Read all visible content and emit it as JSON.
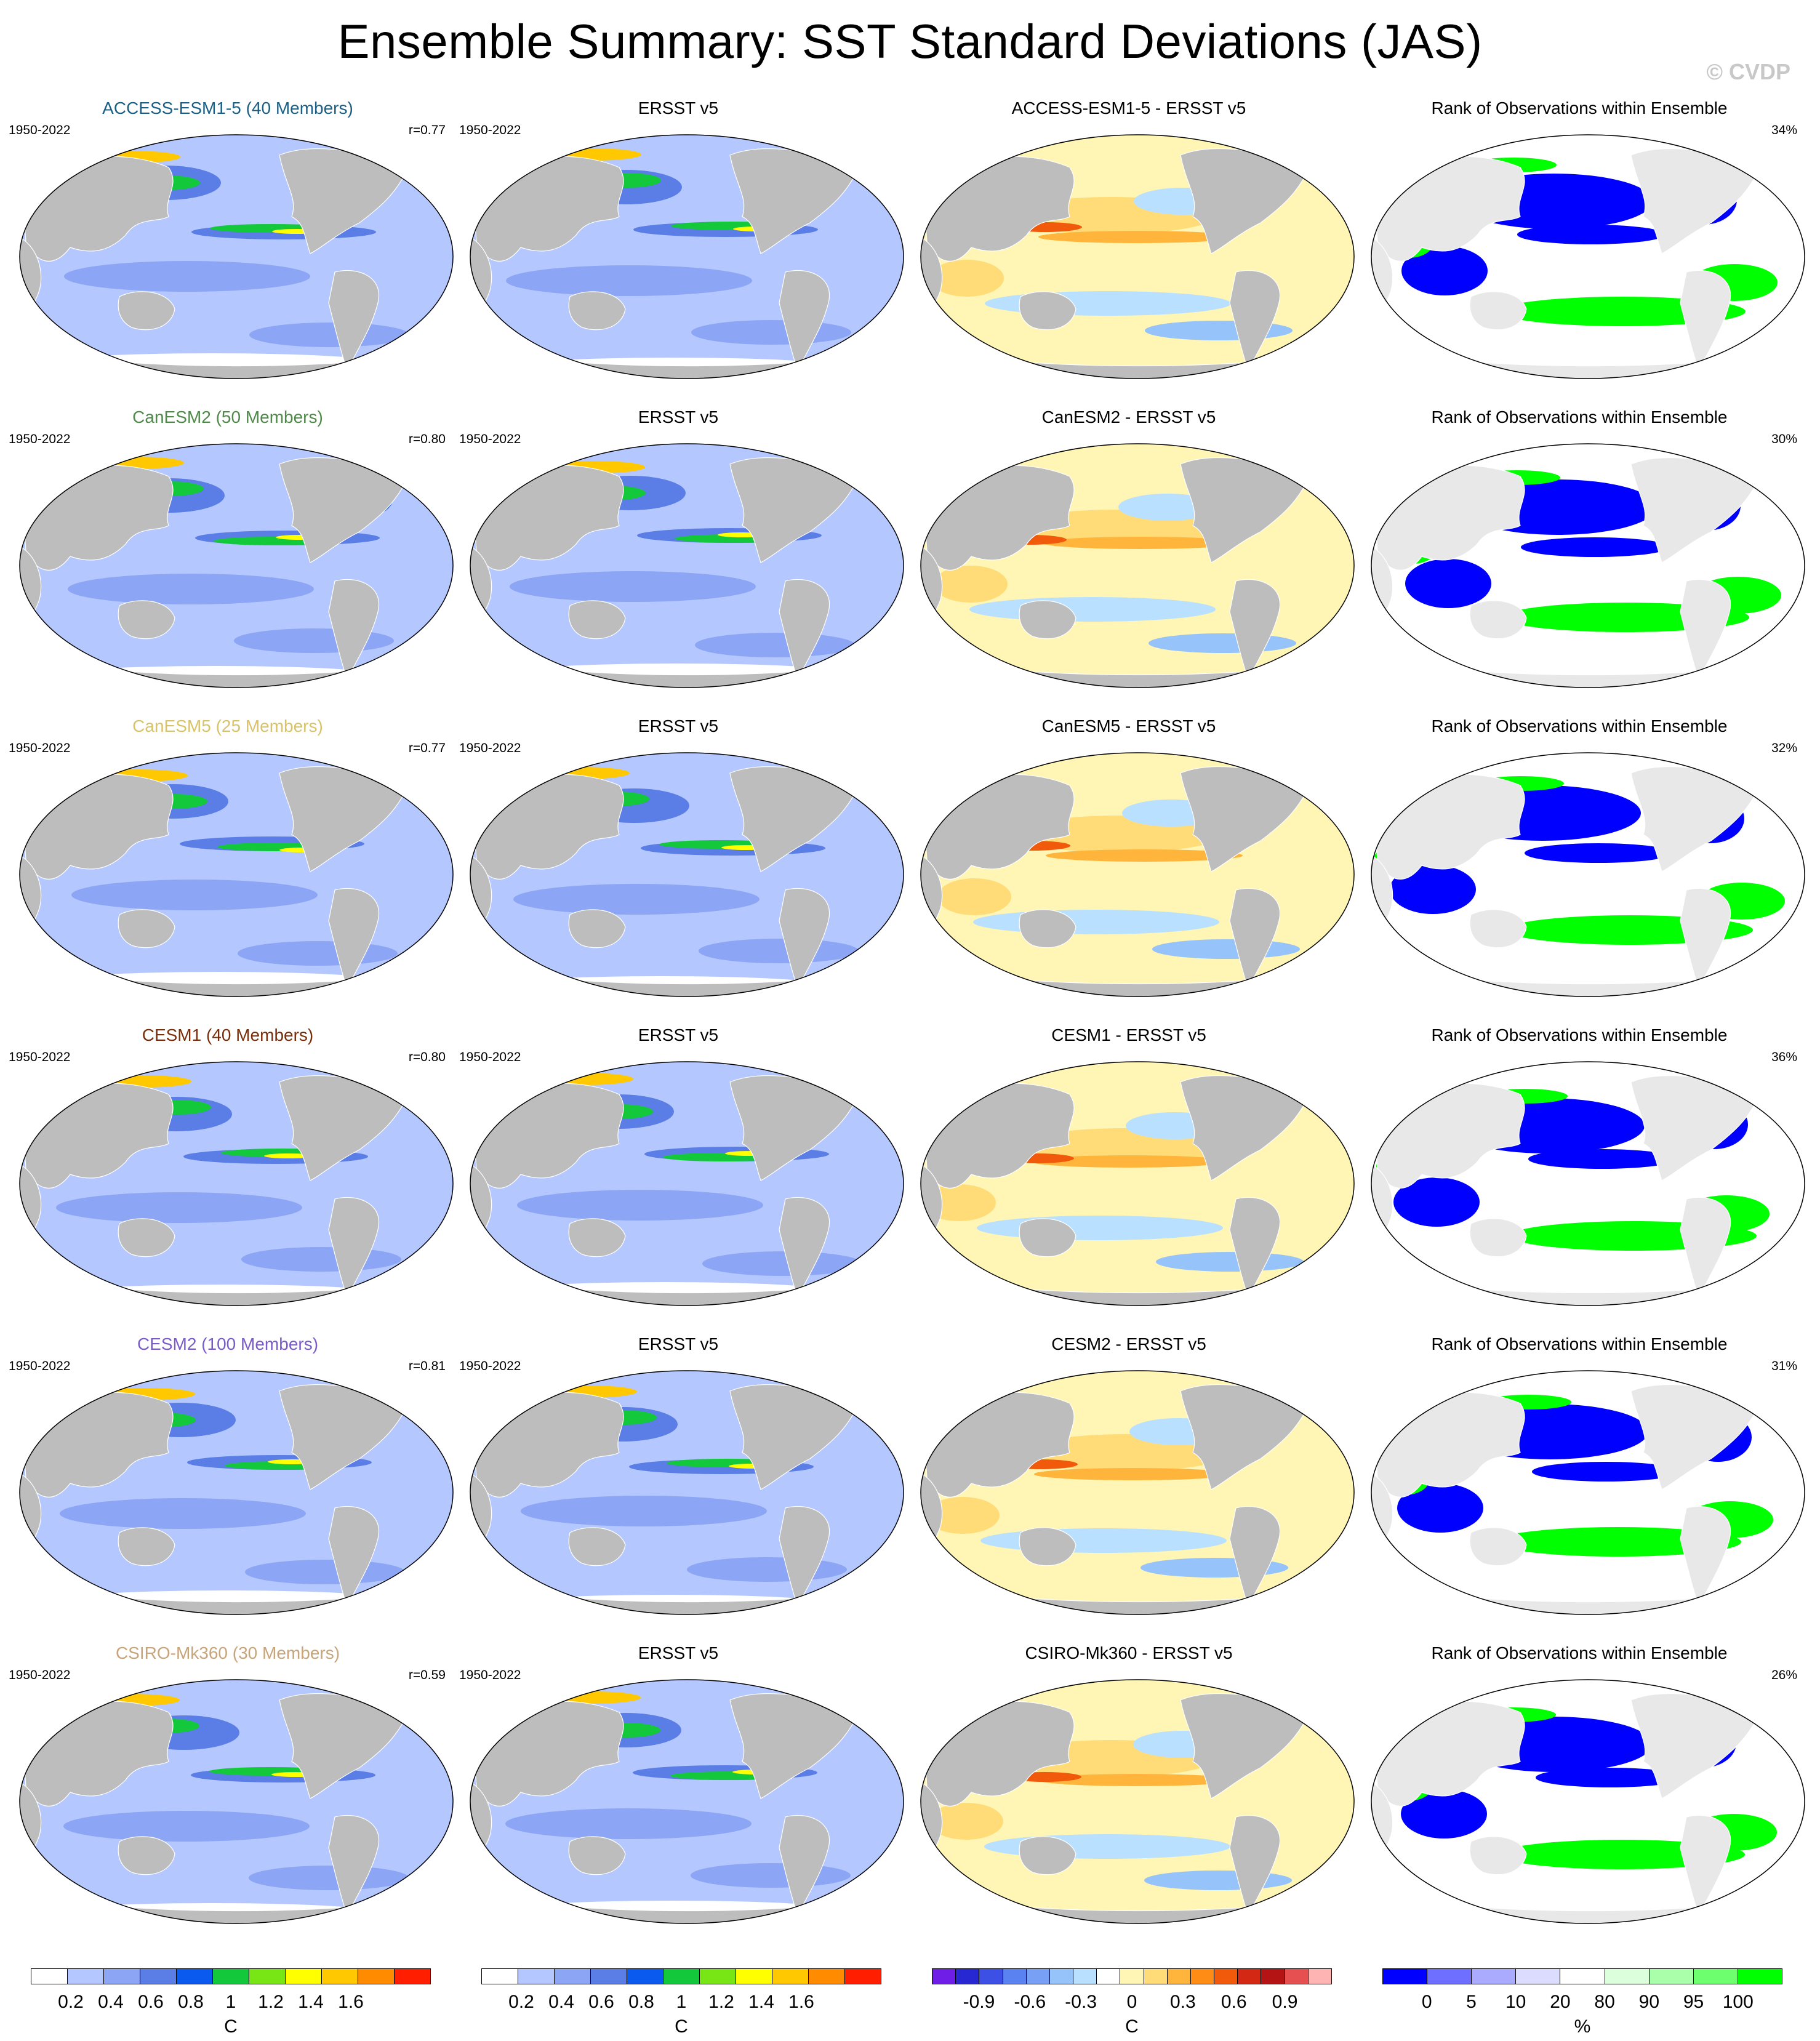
{
  "title": "Ensemble Summary: SST Standard Deviations (JAS)",
  "watermark": "© CVDP",
  "rows": [
    {
      "model_title": "ACCESS-ESM1-5 (40 Members)",
      "model_color": "#1a5f86",
      "period": "1950-2022",
      "r": "r=0.77",
      "obs_title": "ERSST v5",
      "obs_period": "1950-2022",
      "diff_title": "ACCESS-ESM1-5 - ERSST v5",
      "rank_title": "Rank of Observations within Ensemble",
      "rank_pct": "34%"
    },
    {
      "model_title": "CanESM2 (50 Members)",
      "model_color": "#4f8a4a",
      "period": "1950-2022",
      "r": "r=0.80",
      "obs_title": "ERSST v5",
      "obs_period": "1950-2022",
      "diff_title": "CanESM2 - ERSST v5",
      "rank_title": "Rank of Observations within Ensemble",
      "rank_pct": "30%"
    },
    {
      "model_title": "CanESM5 (25 Members)",
      "model_color": "#d9c36a",
      "period": "1950-2022",
      "r": "r=0.77",
      "obs_title": "ERSST v5",
      "obs_period": "1950-2022",
      "diff_title": "CanESM5 - ERSST v5",
      "rank_title": "Rank of Observations within Ensemble",
      "rank_pct": "32%"
    },
    {
      "model_title": "CESM1 (40 Members)",
      "model_color": "#7a2e0a",
      "period": "1950-2022",
      "r": "r=0.80",
      "obs_title": "ERSST v5",
      "obs_period": "1950-2022",
      "diff_title": "CESM1 - ERSST v5",
      "rank_title": "Rank of Observations within Ensemble",
      "rank_pct": "36%"
    },
    {
      "model_title": "CESM2 (100 Members)",
      "model_color": "#7a5cc9",
      "period": "1950-2022",
      "r": "r=0.81",
      "obs_title": "ERSST v5",
      "obs_period": "1950-2022",
      "diff_title": "CESM2 - ERSST v5",
      "rank_title": "Rank of Observations within Ensemble",
      "rank_pct": "31%"
    },
    {
      "model_title": "CSIRO-Mk360 (30 Members)",
      "model_color": "#c8a47a",
      "period": "1950-2022",
      "r": "r=0.59",
      "obs_title": "ERSST v5",
      "obs_period": "1950-2022",
      "diff_title": "CSIRO-Mk360 - ERSST v5",
      "rank_title": "Rank of Observations within Ensemble",
      "rank_pct": "26%"
    }
  ],
  "colorbars": [
    {
      "unit": "C",
      "ticks": [
        "0.2",
        "0.4",
        "0.6",
        "0.8",
        "1",
        "1.2",
        "1.4",
        "1.6"
      ],
      "colors": [
        "#ffffff",
        "#b4c8ff",
        "#8ca5f5",
        "#5a7de6",
        "#0a5af0",
        "#14c83c",
        "#78e614",
        "#ffff00",
        "#ffc800",
        "#ff8c00",
        "#ff1e00"
      ]
    },
    {
      "unit": "C",
      "ticks": [
        "0.2",
        "0.4",
        "0.6",
        "0.8",
        "1",
        "1.2",
        "1.4",
        "1.6"
      ],
      "colors": [
        "#ffffff",
        "#b4c8ff",
        "#8ca5f5",
        "#5a7de6",
        "#0a5af0",
        "#14c83c",
        "#78e614",
        "#ffff00",
        "#ffc800",
        "#ff8c00",
        "#ff1e00"
      ]
    },
    {
      "unit": "C",
      "ticks": [
        "-0.9",
        "-0.6",
        "-0.3",
        "0",
        "0.3",
        "0.6",
        "0.9"
      ],
      "colors": [
        "#6e1ee6",
        "#2828d2",
        "#3c50e6",
        "#5a82f0",
        "#78a0f5",
        "#96c3fa",
        "#b9e1ff",
        "#ffffff",
        "#fff5b4",
        "#ffdc78",
        "#ffb43c",
        "#ff8c14",
        "#f05a0a",
        "#d22814",
        "#b41414",
        "#e65050",
        "#ffb4b4"
      ]
    },
    {
      "unit": "%",
      "ticks": [
        "0",
        "5",
        "10",
        "20",
        "80",
        "90",
        "95",
        "100"
      ],
      "colors": [
        "#0000ff",
        "#6e6eff",
        "#aaaaff",
        "#dcdcff",
        "#ffffff",
        "#dcffdc",
        "#aaffaa",
        "#6eff6e",
        "#00ff00"
      ]
    }
  ],
  "colors": {
    "land": "#bdbdbd",
    "land_light": "#e8e8e8",
    "ocean_base": "#b4c8ff",
    "diff_base": "#fff5b4",
    "rank_base": "#ffffff"
  }
}
